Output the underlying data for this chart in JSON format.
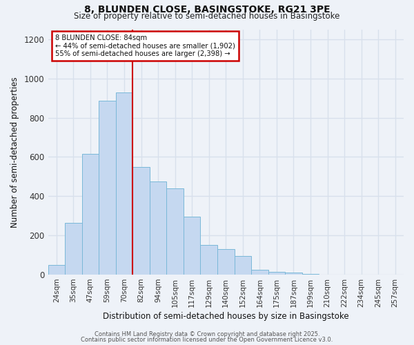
{
  "title": "8, BLUNDEN CLOSE, BASINGSTOKE, RG21 3PE",
  "subtitle": "Size of property relative to semi-detached houses in Basingstoke",
  "xlabel": "Distribution of semi-detached houses by size in Basingstoke",
  "ylabel": "Number of semi-detached properties",
  "bar_labels": [
    "24sqm",
    "35sqm",
    "47sqm",
    "59sqm",
    "70sqm",
    "82sqm",
    "94sqm",
    "105sqm",
    "117sqm",
    "129sqm",
    "140sqm",
    "152sqm",
    "164sqm",
    "175sqm",
    "187sqm",
    "199sqm",
    "210sqm",
    "222sqm",
    "234sqm",
    "245sqm",
    "257sqm"
  ],
  "bar_values": [
    50,
    265,
    615,
    885,
    930,
    550,
    475,
    440,
    295,
    150,
    130,
    95,
    25,
    15,
    10,
    5,
    0,
    0,
    0,
    0,
    0
  ],
  "bar_color": "#c5d8f0",
  "bar_edge_color": "#7ab8d8",
  "vline_color": "#cc0000",
  "vline_pos": 4.5,
  "annotation_title": "8 BLUNDEN CLOSE: 84sqm",
  "annotation_line1": "← 44% of semi-detached houses are smaller (1,902)",
  "annotation_line2": "55% of semi-detached houses are larger (2,398) →",
  "annotation_box_color": "#cc0000",
  "annotation_bg": "#ffffff",
  "ylim": [
    0,
    1250
  ],
  "yticks": [
    0,
    200,
    400,
    600,
    800,
    1000,
    1200
  ],
  "footer1": "Contains HM Land Registry data © Crown copyright and database right 2025.",
  "footer2": "Contains public sector information licensed under the Open Government Licence v3.0.",
  "bg_color": "#eef2f8",
  "grid_color": "#d8e0ec"
}
